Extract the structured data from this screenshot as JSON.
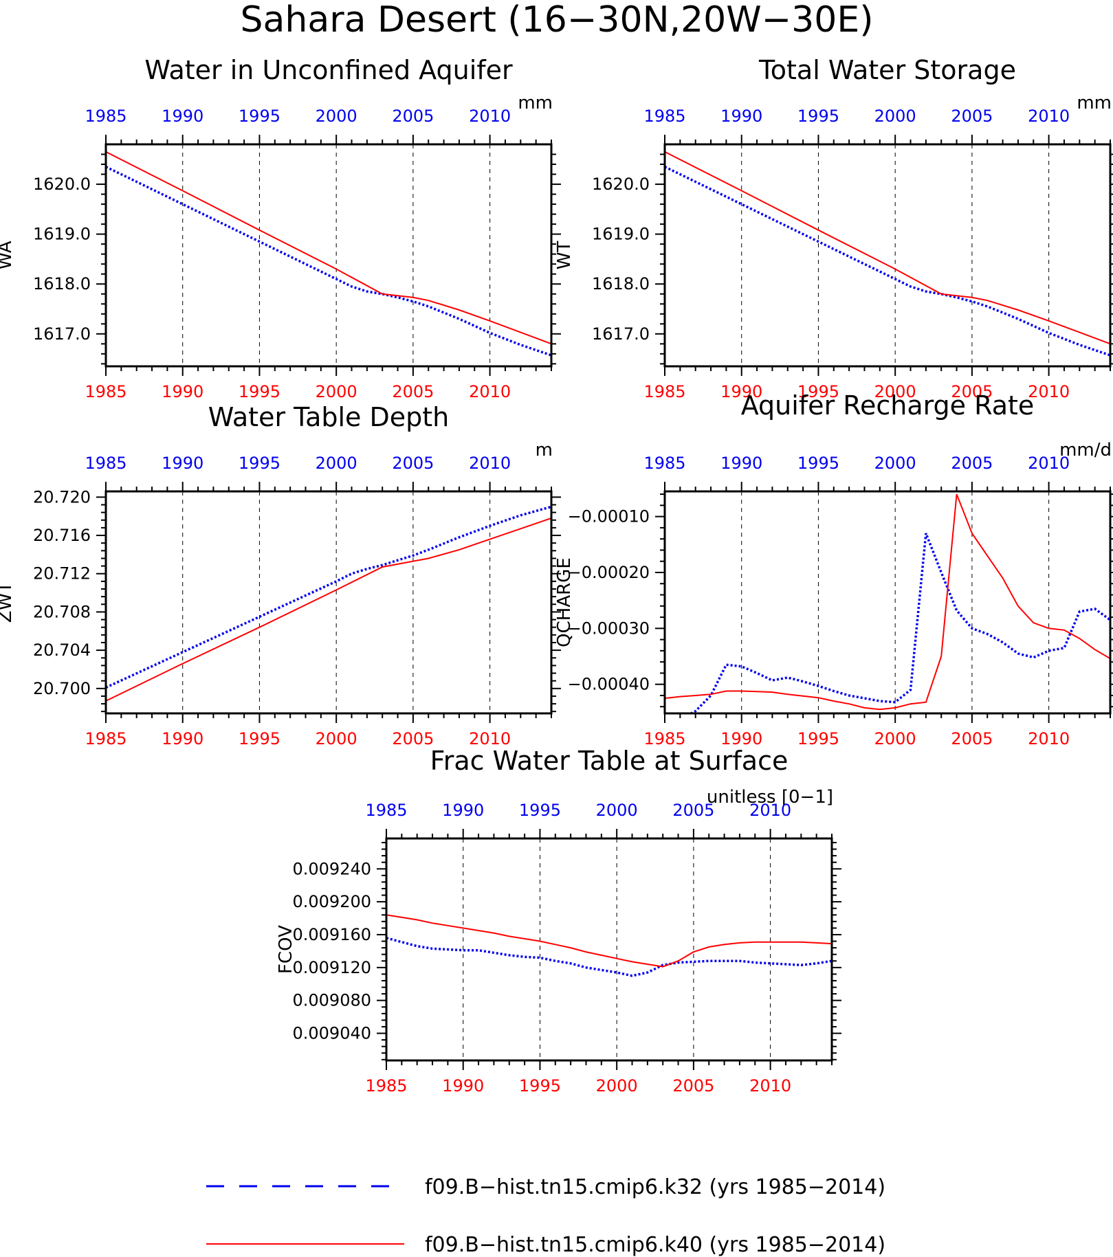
{
  "title": "Sahara Desert (16−30N,20W−30E)",
  "colors": {
    "k32": "#0000ee",
    "k40": "#ff0000",
    "axis": "#000000"
  },
  "legend": [
    {
      "label": "f09.B−hist.tn15.cmip6.k32 (yrs 1985−2014)",
      "color": "#0000ee",
      "style": "dotted"
    },
    {
      "label": "f09.B−hist.tn15.cmip6.k40 (yrs 1985−2014)",
      "color": "#ff0000",
      "style": "solid"
    }
  ],
  "chart_data": [
    {
      "type": "line",
      "id": "wa",
      "title": "Water in Unconfined Aquifer",
      "ylabel": "WA",
      "units": "mm",
      "xlim": [
        1985,
        2014
      ],
      "ylim": [
        1616.35,
        1620.8
      ],
      "x_ticks": [
        1985,
        1990,
        1995,
        2000,
        2005,
        2010
      ],
      "x_ticklabels": [
        "1985",
        "1990",
        "1995",
        "2000",
        "2005",
        "2010"
      ],
      "y_ticks": [
        1617.0,
        1618.0,
        1619.0,
        1620.0
      ],
      "y_ticklabels": [
        "1617.0",
        "1618.0",
        "1619.0",
        "1620.0"
      ],
      "grid_x": true,
      "series": [
        {
          "name": "f09.B−hist.tn15.cmip6.k32",
          "style": "dotted",
          "x": [
            1985,
            1990,
            1995,
            2000,
            2001,
            2002,
            2003,
            2004,
            2005,
            2006,
            2008,
            2010,
            2012,
            2014
          ],
          "y": [
            1620.35,
            1619.6,
            1618.85,
            1618.1,
            1617.95,
            1617.85,
            1617.8,
            1617.73,
            1617.65,
            1617.55,
            1617.3,
            1617.02,
            1616.78,
            1616.57
          ]
        },
        {
          "name": "f09.B−hist.tn15.cmip6.k40",
          "style": "solid",
          "x": [
            1985,
            1990,
            1995,
            2000,
            2003,
            2005,
            2006,
            2008,
            2010,
            2012,
            2014
          ],
          "y": [
            1620.65,
            1619.87,
            1619.08,
            1618.3,
            1617.8,
            1617.73,
            1617.67,
            1617.48,
            1617.26,
            1617.03,
            1616.8
          ]
        }
      ]
    },
    {
      "type": "line",
      "id": "wt",
      "title": "Total Water Storage",
      "ylabel": "WT",
      "units": "mm",
      "xlim": [
        1985,
        2014
      ],
      "ylim": [
        1616.35,
        1620.8
      ],
      "x_ticks": [
        1985,
        1990,
        1995,
        2000,
        2005,
        2010
      ],
      "x_ticklabels": [
        "1985",
        "1990",
        "1995",
        "2000",
        "2005",
        "2010"
      ],
      "y_ticks": [
        1617.0,
        1618.0,
        1619.0,
        1620.0
      ],
      "y_ticklabels": [
        "1617.0",
        "1618.0",
        "1619.0",
        "1620.0"
      ],
      "grid_x": true,
      "series": [
        {
          "name": "f09.B−hist.tn15.cmip6.k32",
          "style": "dotted",
          "x": [
            1985,
            1990,
            1995,
            2000,
            2001,
            2002,
            2003,
            2004,
            2005,
            2006,
            2008,
            2010,
            2012,
            2014
          ],
          "y": [
            1620.35,
            1619.6,
            1618.85,
            1618.1,
            1617.95,
            1617.85,
            1617.8,
            1617.73,
            1617.65,
            1617.55,
            1617.3,
            1617.02,
            1616.78,
            1616.57
          ]
        },
        {
          "name": "f09.B−hist.tn15.cmip6.k40",
          "style": "solid",
          "x": [
            1985,
            1990,
            1995,
            2000,
            2003,
            2005,
            2006,
            2008,
            2010,
            2012,
            2014
          ],
          "y": [
            1620.65,
            1619.87,
            1619.08,
            1618.3,
            1617.8,
            1617.73,
            1617.67,
            1617.48,
            1617.26,
            1617.03,
            1616.8
          ]
        }
      ]
    },
    {
      "type": "line",
      "id": "zwt",
      "title": "Water Table Depth",
      "ylabel": "ZWT",
      "units": "m",
      "xlim": [
        1985,
        2014
      ],
      "ylim": [
        20.6974,
        20.7206
      ],
      "x_ticks": [
        1985,
        1990,
        1995,
        2000,
        2005,
        2010
      ],
      "x_ticklabels": [
        "1985",
        "1990",
        "1995",
        "2000",
        "2005",
        "2010"
      ],
      "y_ticks": [
        20.7,
        20.704,
        20.708,
        20.712,
        20.716,
        20.72
      ],
      "y_ticklabels": [
        "20.700",
        "20.704",
        "20.708",
        "20.712",
        "20.716",
        "20.720"
      ],
      "grid_x": true,
      "series": [
        {
          "name": "f09.B−hist.tn15.cmip6.k32",
          "style": "dotted",
          "x": [
            1985,
            1990,
            1995,
            2000,
            2001,
            2002,
            2003,
            2004,
            2005,
            2006,
            2008,
            2010,
            2012,
            2014
          ],
          "y": [
            20.7001,
            20.7038,
            20.7075,
            20.7112,
            20.712,
            20.7125,
            20.7129,
            20.7134,
            20.7139,
            20.7145,
            20.7158,
            20.717,
            20.7181,
            20.719
          ]
        },
        {
          "name": "f09.B−hist.tn15.cmip6.k40",
          "style": "solid",
          "x": [
            1985,
            1990,
            1995,
            2000,
            2003,
            2005,
            2006,
            2008,
            2010,
            2012,
            2014
          ],
          "y": [
            20.6987,
            20.7026,
            20.7064,
            20.7103,
            20.7127,
            20.7133,
            20.7136,
            20.7145,
            20.7156,
            20.7167,
            20.7178
          ]
        }
      ]
    },
    {
      "type": "line",
      "id": "qcharge",
      "title": "Aquifer Recharge Rate",
      "ylabel": "QCHARGE",
      "units": "mm/d",
      "xlim": [
        1985,
        2014
      ],
      "ylim": [
        -0.000452,
        -5.5e-05
      ],
      "x_ticks": [
        1985,
        1990,
        1995,
        2000,
        2005,
        2010
      ],
      "x_ticklabels": [
        "1985",
        "1990",
        "1995",
        "2000",
        "2005",
        "2010"
      ],
      "y_ticks": [
        -0.0004,
        -0.0003,
        -0.0002,
        -0.0001
      ],
      "y_ticklabels": [
        "−0.00040",
        "−0.00030",
        "−0.00020",
        "−0.00010"
      ],
      "grid_x": true,
      "series": [
        {
          "name": "f09.B−hist.tn15.cmip6.k32",
          "style": "dotted",
          "x": [
            1985,
            1986,
            1987,
            1988,
            1989,
            1990,
            1991,
            1992,
            1993,
            1994,
            1995,
            1996,
            1997,
            1998,
            1999,
            2000,
            2001,
            2002,
            2003,
            2004,
            2005,
            2006,
            2007,
            2008,
            2009,
            2010,
            2011,
            2012,
            2013,
            2014
          ],
          "y": [
            -0.000475,
            -0.000462,
            -0.000448,
            -0.00042,
            -0.000365,
            -0.000368,
            -0.00038,
            -0.000393,
            -0.000388,
            -0.000395,
            -0.000403,
            -0.000412,
            -0.00042,
            -0.000425,
            -0.00043,
            -0.000432,
            -0.00041,
            -0.00013,
            -0.0002,
            -0.000268,
            -0.0003,
            -0.00031,
            -0.000325,
            -0.000345,
            -0.000352,
            -0.00034,
            -0.000335,
            -0.00027,
            -0.000265,
            -0.000285
          ]
        },
        {
          "name": "f09.B−hist.tn15.cmip6.k40",
          "style": "solid",
          "x": [
            1985,
            1986,
            1987,
            1988,
            1989,
            1990,
            1991,
            1992,
            1993,
            1994,
            1995,
            1996,
            1997,
            1998,
            1999,
            2000,
            2001,
            2002,
            2003,
            2004,
            2005,
            2006,
            2007,
            2008,
            2009,
            2010,
            2011,
            2012,
            2013,
            2014
          ],
          "y": [
            -0.000425,
            -0.000422,
            -0.00042,
            -0.000418,
            -0.000412,
            -0.000412,
            -0.000413,
            -0.000414,
            -0.000418,
            -0.000421,
            -0.000424,
            -0.00043,
            -0.000435,
            -0.000442,
            -0.000445,
            -0.000442,
            -0.000435,
            -0.000432,
            -0.00035,
            -6e-05,
            -0.00013,
            -0.00017,
            -0.00021,
            -0.00026,
            -0.00029,
            -0.0003,
            -0.000303,
            -0.000318,
            -0.000338,
            -0.000354
          ]
        }
      ]
    },
    {
      "type": "line",
      "id": "fcov",
      "title": "Frac Water Table at Surface",
      "ylabel": "FCOV",
      "units": "unitless [0−1]",
      "xlim": [
        1985,
        2014
      ],
      "ylim": [
        0.009007,
        0.009277
      ],
      "x_ticks": [
        1985,
        1990,
        1995,
        2000,
        2005,
        2010
      ],
      "x_ticklabels": [
        "1985",
        "1990",
        "1995",
        "2000",
        "2005",
        "2010"
      ],
      "y_ticks": [
        0.00904,
        0.00908,
        0.00912,
        0.00916,
        0.0092,
        0.00924
      ],
      "y_ticklabels": [
        "0.009040",
        "0.009080",
        "0.009120",
        "0.009160",
        "0.009200",
        "0.009240"
      ],
      "grid_x": true,
      "series": [
        {
          "name": "f09.B−hist.tn15.cmip6.k32",
          "style": "dotted",
          "x": [
            1985,
            1986,
            1987,
            1988,
            1989,
            1990,
            1991,
            1992,
            1993,
            1994,
            1995,
            1996,
            1997,
            1998,
            1999,
            2000,
            2001,
            2002,
            2003,
            2004,
            2005,
            2006,
            2007,
            2008,
            2009,
            2010,
            2011,
            2012,
            2013,
            2014
          ],
          "y": [
            0.009156,
            0.009151,
            0.009146,
            0.009143,
            0.009142,
            0.009141,
            0.009141,
            0.009138,
            0.009135,
            0.009133,
            0.009132,
            0.009128,
            0.009125,
            0.00912,
            0.009117,
            0.009114,
            0.00911,
            0.009114,
            0.009123,
            0.009126,
            0.009127,
            0.009128,
            0.009128,
            0.009128,
            0.009126,
            0.009125,
            0.009124,
            0.009123,
            0.009125,
            0.009128
          ]
        },
        {
          "name": "f09.B−hist.tn15.cmip6.k40",
          "style": "solid",
          "x": [
            1985,
            1986,
            1987,
            1988,
            1989,
            1990,
            1991,
            1992,
            1993,
            1994,
            1995,
            1996,
            1997,
            1998,
            1999,
            2000,
            2001,
            2002,
            2003,
            2004,
            2005,
            2006,
            2007,
            2008,
            2009,
            2010,
            2011,
            2012,
            2013,
            2014
          ],
          "y": [
            0.009184,
            0.009181,
            0.009178,
            0.009174,
            0.009171,
            0.009168,
            0.009165,
            0.009162,
            0.009158,
            0.009155,
            0.009152,
            0.009148,
            0.009144,
            0.009139,
            0.009135,
            0.009131,
            0.009127,
            0.009124,
            0.009121,
            0.009128,
            0.009139,
            0.009145,
            0.009148,
            0.00915,
            0.009151,
            0.009151,
            0.009151,
            0.009151,
            0.00915,
            0.009149
          ]
        }
      ]
    }
  ]
}
